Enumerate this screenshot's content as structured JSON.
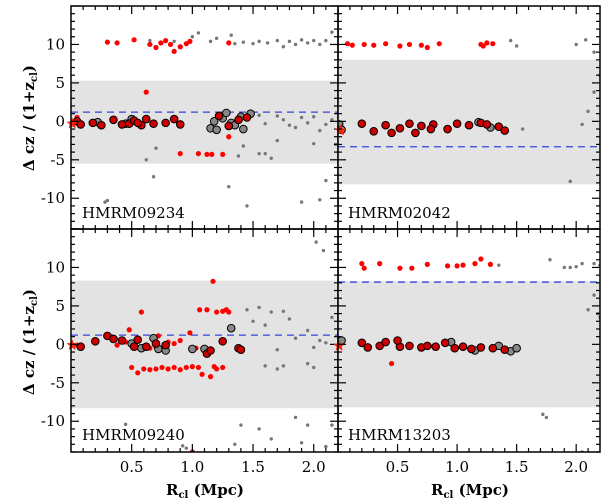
{
  "chart_data": {
    "type": "scatter",
    "xlabel": "R",
    "xlabel_sub": "cl",
    "xlabel_unit": "(Mpc)",
    "ylabel": "Δ cz / (1+z",
    "ylabel_sub": "cl",
    "ylabel_end": ")",
    "xlim": [
      0.0,
      2.2
    ],
    "ylim": [
      -14,
      15
    ],
    "x_ticks": [
      0.5,
      1.0,
      1.5,
      2.0
    ],
    "x_tick_labels": [
      "0.5",
      "1.0",
      "1.5",
      "2.0"
    ],
    "y_ticks": [
      10,
      5,
      0,
      -5,
      -10
    ],
    "y_tick_labels": [
      "10",
      "5",
      "0",
      "-5",
      "-10"
    ],
    "colors": {
      "members": "#ff0000",
      "members_ringed": "#cc0000",
      "nonmembers": "#777777",
      "open_circle": "#888888",
      "band": "#e3e3e3",
      "dashed_line": "#3344dd",
      "star": "#ff2200"
    },
    "panels": [
      {
        "name": "HMRM09234",
        "band": [
          -5.5,
          5.3
        ],
        "dashed": 1.2,
        "red": [
          [
            0.02,
            -0.2
          ],
          [
            0.05,
            0.5
          ],
          [
            0.3,
            10.3
          ],
          [
            0.38,
            10.2
          ],
          [
            0.52,
            10.6
          ],
          [
            0.65,
            10.0
          ],
          [
            0.7,
            9.6
          ],
          [
            0.74,
            10.2
          ],
          [
            0.78,
            10.5
          ],
          [
            0.82,
            10.0
          ],
          [
            0.85,
            9.1
          ],
          [
            0.9,
            9.7
          ],
          [
            0.95,
            10.1
          ],
          [
            0.98,
            10.4
          ],
          [
            1.3,
            10.2
          ],
          [
            0.62,
            3.8
          ],
          [
            0.9,
            -4.2
          ],
          [
            1.05,
            -4.2
          ],
          [
            1.12,
            -4.3
          ],
          [
            1.16,
            -4.3
          ],
          [
            1.25,
            -4.3
          ],
          [
            1.3,
            -2.0
          ]
        ],
        "black": [
          [
            0.05,
            0.0
          ],
          [
            0.08,
            -0.4
          ],
          [
            0.18,
            -0.2
          ],
          [
            0.25,
            -0.5
          ],
          [
            0.35,
            0.2
          ],
          [
            0.42,
            -0.4
          ],
          [
            0.48,
            -0.3
          ],
          [
            0.52,
            0.1
          ],
          [
            0.58,
            -0.5
          ],
          [
            0.62,
            0.3
          ],
          [
            0.68,
            -0.3
          ],
          [
            0.78,
            -0.2
          ],
          [
            0.85,
            0.3
          ],
          [
            0.9,
            -0.4
          ],
          [
            1.22,
            0.7
          ],
          [
            1.3,
            -0.6
          ],
          [
            1.38,
            0.2
          ],
          [
            1.45,
            0.5
          ],
          [
            0.55,
            -0.2
          ]
        ],
        "open": [
          [
            0.22,
            -0.1
          ],
          [
            0.45,
            -0.3
          ],
          [
            0.5,
            0.3
          ],
          [
            1.15,
            -0.9
          ],
          [
            1.2,
            -1.1
          ],
          [
            1.25,
            0.4
          ],
          [
            1.28,
            1.1
          ],
          [
            1.32,
            -0.2
          ],
          [
            1.35,
            -0.5
          ],
          [
            1.4,
            0.6
          ],
          [
            1.48,
            1.0
          ],
          [
            1.18,
            0.0
          ],
          [
            1.42,
            -1.0
          ]
        ],
        "grey": [
          [
            0.65,
            10.5
          ],
          [
            0.75,
            10.2
          ],
          [
            0.85,
            10.4
          ],
          [
            1.05,
            11.5
          ],
          [
            1.15,
            10.4
          ],
          [
            1.2,
            10.8
          ],
          [
            1.35,
            10.1
          ],
          [
            1.42,
            10.3
          ],
          [
            1.5,
            10.1
          ],
          [
            1.55,
            10.4
          ],
          [
            1.62,
            10.2
          ],
          [
            1.7,
            10.5
          ],
          [
            1.75,
            9.7
          ],
          [
            1.8,
            10.4
          ],
          [
            1.85,
            10.0
          ],
          [
            1.9,
            10.6
          ],
          [
            1.95,
            10.2
          ],
          [
            2.0,
            10.5
          ],
          [
            2.05,
            10.0
          ],
          [
            2.1,
            10.5
          ],
          [
            2.15,
            11.6
          ],
          [
            1.32,
            11.2
          ],
          [
            1.0,
            11.0
          ],
          [
            1.55,
            0.8
          ],
          [
            1.6,
            -0.3
          ],
          [
            1.7,
            0.7
          ],
          [
            1.75,
            0.2
          ],
          [
            1.8,
            -0.5
          ],
          [
            1.85,
            -0.8
          ],
          [
            1.9,
            0.5
          ],
          [
            1.95,
            -0.2
          ],
          [
            2.0,
            0.6
          ],
          [
            2.05,
            -1.2
          ],
          [
            2.1,
            -0.4
          ],
          [
            2.15,
            0.2
          ],
          [
            1.7,
            -2.5
          ],
          [
            2.0,
            -2.9
          ],
          [
            2.18,
            -3.0
          ],
          [
            1.38,
            -4.5
          ],
          [
            1.42,
            -3.2
          ],
          [
            1.65,
            -4.8
          ],
          [
            1.55,
            -4.2
          ],
          [
            0.62,
            -5.0
          ],
          [
            0.68,
            -7.2
          ],
          [
            0.7,
            -3.5
          ],
          [
            1.6,
            -4.2
          ],
          [
            0.3,
            -10.3
          ],
          [
            0.28,
            -10.5
          ],
          [
            1.9,
            -10.5
          ],
          [
            2.1,
            -7.7
          ],
          [
            1.3,
            -8.5
          ],
          [
            1.45,
            -11.0
          ],
          [
            2.05,
            -10.2
          ]
        ],
        "star": [
          0.01,
          -0.3
        ]
      },
      {
        "name": "HMRM02042",
        "band": [
          -8.2,
          8.0
        ],
        "dashed": -3.3,
        "red": [
          [
            0.08,
            10.1
          ],
          [
            0.12,
            9.9
          ],
          [
            0.22,
            10.0
          ],
          [
            0.3,
            9.9
          ],
          [
            0.4,
            10.1
          ],
          [
            0.52,
            9.8
          ],
          [
            0.6,
            10.0
          ],
          [
            0.7,
            9.9
          ],
          [
            0.75,
            9.6
          ],
          [
            0.85,
            10.1
          ],
          [
            1.2,
            10.0
          ],
          [
            1.25,
            10.2
          ],
          [
            1.3,
            10.1
          ],
          [
            1.22,
            9.8
          ]
        ],
        "black": [
          [
            0.2,
            -0.3
          ],
          [
            0.3,
            -1.3
          ],
          [
            0.4,
            -0.5
          ],
          [
            0.52,
            -0.9
          ],
          [
            0.6,
            -0.3
          ],
          [
            0.7,
            -0.6
          ],
          [
            0.8,
            -0.4
          ],
          [
            0.92,
            -1.0
          ],
          [
            1.0,
            -0.3
          ],
          [
            1.1,
            -0.5
          ],
          [
            1.2,
            -0.2
          ],
          [
            1.25,
            -0.4
          ],
          [
            1.35,
            -0.7
          ],
          [
            1.4,
            -1.2
          ],
          [
            0.45,
            -1.5
          ],
          [
            0.65,
            -1.5
          ],
          [
            0.78,
            -1.0
          ]
        ],
        "open": [
          [
            0.01,
            -0.4
          ],
          [
            0.03,
            -1.1
          ],
          [
            1.18,
            -0.1
          ],
          [
            1.28,
            -0.8
          ]
        ],
        "grey": [
          [
            1.45,
            10.5
          ],
          [
            1.5,
            9.8
          ],
          [
            2.0,
            10.0
          ],
          [
            2.08,
            10.6
          ],
          [
            2.15,
            9.0
          ],
          [
            2.2,
            6.0
          ],
          [
            2.15,
            3.8
          ],
          [
            2.1,
            1.3
          ],
          [
            2.05,
            -0.4
          ],
          [
            1.55,
            -1.0
          ],
          [
            1.95,
            -7.8
          ]
        ],
        "star": [
          0.02,
          -1.2
        ]
      },
      {
        "name": "HMRM09240",
        "band": [
          -8.3,
          8.3
        ],
        "dashed": 1.2,
        "red": [
          [
            0.05,
            -0.1
          ],
          [
            0.38,
            -0.1
          ],
          [
            0.45,
            0.3
          ],
          [
            0.52,
            -0.2
          ],
          [
            0.56,
            -0.5
          ],
          [
            0.58,
            4.2
          ],
          [
            0.48,
            1.9
          ],
          [
            0.65,
            -0.5
          ],
          [
            0.7,
            -0.3
          ],
          [
            0.72,
            1.1
          ],
          [
            0.8,
            0.3
          ],
          [
            0.9,
            0.5
          ],
          [
            0.98,
            1.5
          ],
          [
            1.06,
            4.5
          ],
          [
            1.12,
            4.5
          ],
          [
            1.17,
            8.2
          ],
          [
            1.2,
            4.2
          ],
          [
            1.25,
            4.3
          ],
          [
            1.3,
            4.2
          ],
          [
            1.03,
            -0.5
          ],
          [
            0.85,
            0.1
          ],
          [
            0.5,
            -3.0
          ],
          [
            0.55,
            -3.7
          ],
          [
            0.6,
            -3.2
          ],
          [
            0.65,
            -3.3
          ],
          [
            0.7,
            -3.2
          ],
          [
            0.75,
            -3.0
          ],
          [
            0.8,
            -3.2
          ],
          [
            0.85,
            -3.0
          ],
          [
            0.9,
            -3.3
          ],
          [
            0.95,
            -3.0
          ],
          [
            1.0,
            -2.9
          ],
          [
            1.05,
            -3.0
          ],
          [
            1.08,
            -3.9
          ],
          [
            1.15,
            -4.2
          ],
          [
            1.18,
            -2.9
          ],
          [
            1.2,
            -3.2
          ],
          [
            1.25,
            -3.0
          ],
          [
            1.0,
            -14.0
          ],
          [
            1.28,
            4.5
          ]
        ],
        "black": [
          [
            0.08,
            -0.3
          ],
          [
            0.2,
            0.4
          ],
          [
            0.3,
            1.1
          ],
          [
            0.35,
            0.7
          ],
          [
            0.42,
            0.5
          ],
          [
            0.52,
            -0.3
          ],
          [
            0.55,
            0.6
          ],
          [
            0.62,
            -0.3
          ],
          [
            0.7,
            0.1
          ],
          [
            0.78,
            -0.1
          ],
          [
            1.12,
            -1.2
          ],
          [
            1.15,
            -0.8
          ],
          [
            1.25,
            0.4
          ],
          [
            1.38,
            -0.5
          ],
          [
            1.4,
            -0.7
          ]
        ],
        "open": [
          [
            0.5,
            0.1
          ],
          [
            0.58,
            -0.5
          ],
          [
            0.68,
            0.8
          ],
          [
            0.72,
            -0.6
          ],
          [
            0.78,
            -0.8
          ],
          [
            1.0,
            -0.6
          ],
          [
            1.1,
            -0.6
          ],
          [
            1.32,
            2.1
          ]
        ],
        "grey": [
          [
            1.45,
            4.5
          ],
          [
            1.5,
            3.0
          ],
          [
            1.55,
            4.8
          ],
          [
            1.6,
            2.5
          ],
          [
            1.65,
            4.2
          ],
          [
            1.7,
            -0.7
          ],
          [
            1.75,
            4.3
          ],
          [
            1.8,
            3.3
          ],
          [
            1.85,
            0.8
          ],
          [
            1.95,
            1.8
          ],
          [
            2.0,
            -0.4
          ],
          [
            2.05,
            0.5
          ],
          [
            2.1,
            0.2
          ],
          [
            2.15,
            3.5
          ],
          [
            1.6,
            -2.8
          ],
          [
            1.7,
            -3.2
          ],
          [
            1.75,
            -2.8
          ],
          [
            2.0,
            -3.0
          ],
          [
            1.95,
            -2.5
          ],
          [
            2.08,
            12.2
          ],
          [
            2.02,
            13.3
          ],
          [
            0.45,
            -10.4
          ],
          [
            0.92,
            -13.2
          ],
          [
            0.95,
            -13.5
          ],
          [
            1.35,
            -13.0
          ],
          [
            1.4,
            -10.5
          ],
          [
            1.55,
            -11.0
          ],
          [
            1.65,
            -12.3
          ],
          [
            1.9,
            -12.8
          ],
          [
            1.95,
            -10.5
          ],
          [
            2.1,
            -13.3
          ],
          [
            2.15,
            -10.5
          ],
          [
            1.85,
            -9.5
          ]
        ],
        "star": [
          0.01,
          -0.1
        ]
      },
      {
        "name": "HMRM13203",
        "band": [
          -8.2,
          8.2
        ],
        "dashed": 8.1,
        "red": [
          [
            0.2,
            10.5
          ],
          [
            0.22,
            9.9
          ],
          [
            0.35,
            10.5
          ],
          [
            0.52,
            9.9
          ],
          [
            0.62,
            9.9
          ],
          [
            0.75,
            10.4
          ],
          [
            0.92,
            10.2
          ],
          [
            1.0,
            10.2
          ],
          [
            1.05,
            10.3
          ],
          [
            1.15,
            10.5
          ],
          [
            1.2,
            11.1
          ],
          [
            1.28,
            10.4
          ],
          [
            0.45,
            -2.5
          ]
        ],
        "black": [
          [
            0.2,
            0.2
          ],
          [
            0.25,
            -0.4
          ],
          [
            0.35,
            -0.2
          ],
          [
            0.4,
            0.3
          ],
          [
            0.52,
            -0.3
          ],
          [
            0.6,
            -0.2
          ],
          [
            0.7,
            -0.4
          ],
          [
            0.75,
            -0.2
          ],
          [
            0.82,
            -0.3
          ],
          [
            0.9,
            0.2
          ],
          [
            0.98,
            -0.5
          ],
          [
            1.05,
            -0.3
          ],
          [
            1.12,
            -0.6
          ],
          [
            1.2,
            -0.4
          ],
          [
            1.3,
            -0.5
          ],
          [
            1.4,
            -0.7
          ],
          [
            0.5,
            0.5
          ]
        ],
        "open": [
          [
            0.03,
            0.5
          ],
          [
            0.95,
            0.3
          ],
          [
            1.15,
            -0.8
          ],
          [
            1.35,
            -0.2
          ],
          [
            1.45,
            -0.9
          ],
          [
            1.5,
            -0.5
          ]
        ],
        "grey": [
          [
            1.35,
            10.3
          ],
          [
            1.78,
            11.0
          ],
          [
            1.9,
            10.0
          ],
          [
            1.95,
            10.0
          ],
          [
            2.0,
            10.1
          ],
          [
            2.05,
            10.5
          ],
          [
            2.15,
            10.5
          ],
          [
            2.2,
            10.3
          ],
          [
            2.15,
            6.4
          ],
          [
            2.1,
            4.5
          ],
          [
            2.18,
            4.0
          ],
          [
            2.2,
            3.5
          ],
          [
            1.72,
            -9.1
          ],
          [
            1.75,
            -9.5
          ],
          [
            2.05,
            -14.0
          ]
        ],
        "star": [
          0.01,
          -0.2
        ]
      }
    ]
  }
}
